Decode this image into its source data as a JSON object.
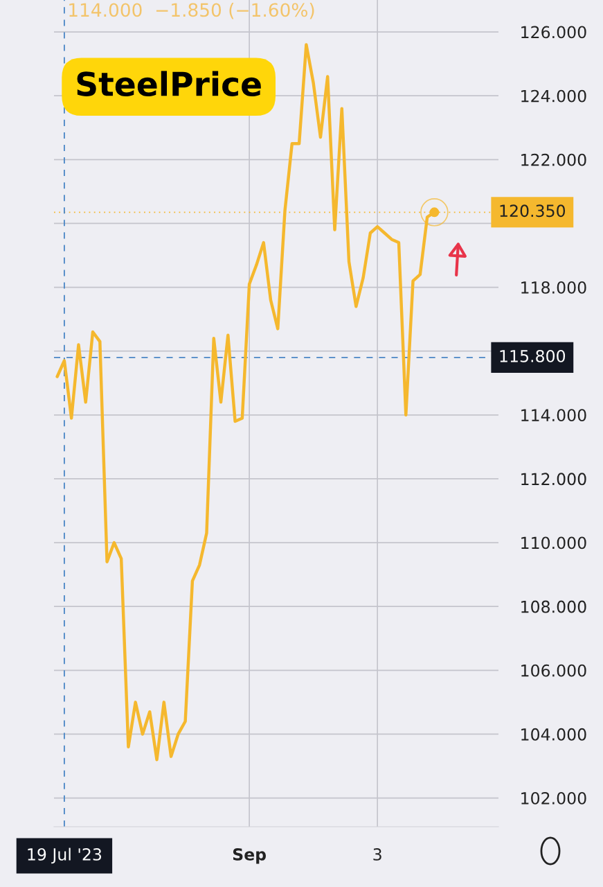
{
  "chart_data": {
    "type": "line",
    "title": "SteelPrice",
    "annotations": [
      "114.000  −1.850 (−1.60%)"
    ],
    "categories": [
      null,
      "19 Jul '23",
      null,
      null,
      null,
      null,
      null,
      null,
      null,
      null,
      null,
      null,
      null,
      null,
      null,
      null,
      null,
      null,
      null,
      null,
      null,
      null,
      null,
      null,
      null,
      null,
      null,
      "Sep",
      null,
      null,
      null,
      null,
      null,
      null,
      null,
      null,
      null,
      null,
      null,
      null,
      null,
      null,
      null,
      null,
      null,
      "3",
      null,
      null,
      null,
      null,
      null,
      null,
      null,
      null
    ],
    "series": [
      {
        "color": "#f5b82e",
        "values": [
          115.2,
          115.7,
          113.9,
          116.2,
          114.4,
          116.6,
          116.3,
          109.4,
          110.0,
          109.5,
          103.6,
          105.0,
          104.0,
          104.7,
          103.2,
          105.0,
          103.3,
          104.0,
          104.4,
          108.8,
          109.3,
          110.3,
          116.4,
          114.4,
          116.5,
          113.8,
          113.9,
          118.1,
          118.7,
          119.4,
          117.6,
          116.7,
          120.4,
          122.5,
          122.5,
          125.6,
          124.4,
          122.7,
          124.6,
          119.8,
          123.6,
          118.8,
          117.4,
          118.3,
          119.7,
          119.9,
          119.7,
          119.5,
          119.4,
          114.0,
          118.2,
          118.4,
          120.2,
          120.35
        ]
      }
    ],
    "ylim": [
      101.1,
      127.0
    ],
    "yticks": [
      {
        "value": 102,
        "label": "102.000"
      },
      {
        "value": 104,
        "label": "104.000"
      },
      {
        "value": 106,
        "label": "106.000"
      },
      {
        "value": 108,
        "label": "108.000"
      },
      {
        "value": 110,
        "label": "110.000"
      },
      {
        "value": 112,
        "label": "112.000"
      },
      {
        "value": 114,
        "label": "114.000"
      },
      {
        "value": 116,
        "label": null
      },
      {
        "value": 118,
        "label": "118.000"
      },
      {
        "value": 120,
        "label": null
      },
      {
        "value": 122,
        "label": "122.000"
      },
      {
        "value": 124,
        "label": "124.000"
      },
      {
        "value": 126,
        "label": "126.000"
      }
    ],
    "ref_lines": [
      {
        "axis": "y",
        "value": 115.8,
        "label": "115.800",
        "color": "#4a86c5",
        "line_style": "dashed"
      },
      {
        "axis": "y",
        "value": 120.35,
        "label": "120.350",
        "color": "#f5b82e",
        "line_style": "dotted"
      },
      {
        "axis": "x",
        "value": "19 Jul '23",
        "color": "#4a86c5",
        "line_style": "dashed"
      }
    ],
    "grid": true,
    "marker": "none",
    "line_style": "solid"
  }
}
